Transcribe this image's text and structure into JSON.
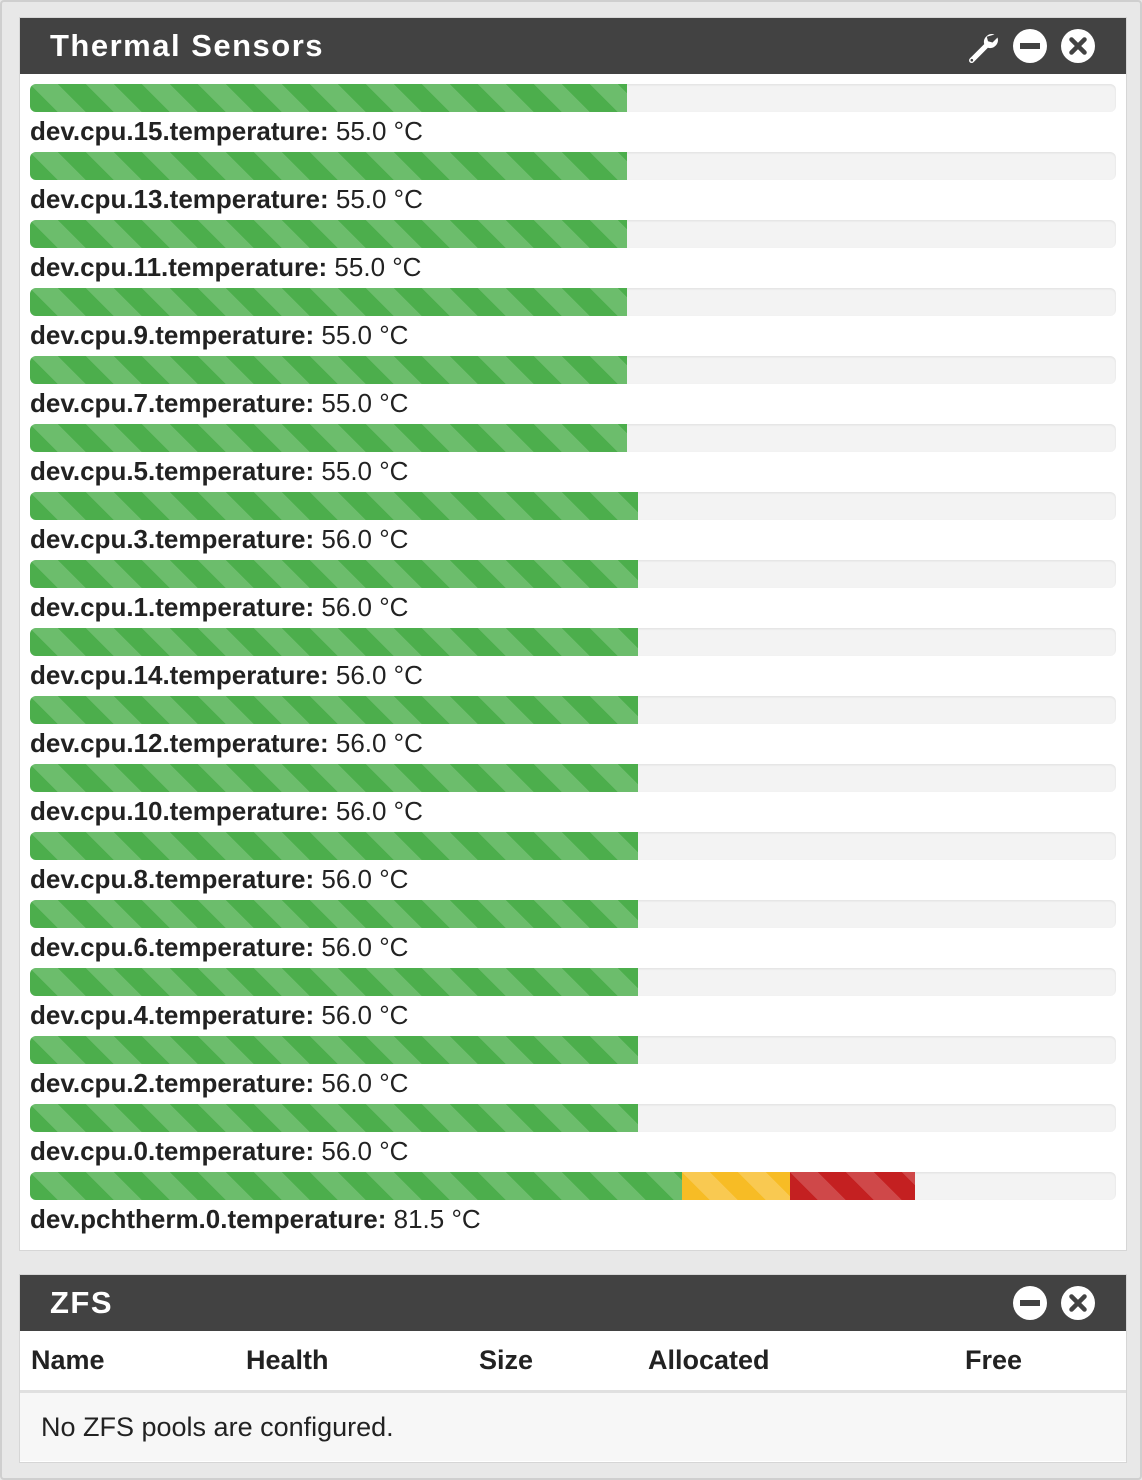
{
  "thermal": {
    "title": "Thermal Sensors",
    "icons": [
      "wrench-icon",
      "minus-circle-icon",
      "close-circle-icon"
    ],
    "colors": {
      "normal": "#4cae4c",
      "warning": "#f7bc25",
      "critical": "#c42021"
    },
    "sensors": [
      {
        "name": "dev.cpu.15.temperature:",
        "value": "55.0 °C",
        "level_pct": 55.0
      },
      {
        "name": "dev.cpu.13.temperature:",
        "value": "55.0 °C",
        "level_pct": 55.0
      },
      {
        "name": "dev.cpu.11.temperature:",
        "value": "55.0 °C",
        "level_pct": 55.0
      },
      {
        "name": "dev.cpu.9.temperature:",
        "value": "55.0 °C",
        "level_pct": 55.0
      },
      {
        "name": "dev.cpu.7.temperature:",
        "value": "55.0 °C",
        "level_pct": 55.0
      },
      {
        "name": "dev.cpu.5.temperature:",
        "value": "55.0 °C",
        "level_pct": 55.0
      },
      {
        "name": "dev.cpu.3.temperature:",
        "value": "56.0 °C",
        "level_pct": 56.0
      },
      {
        "name": "dev.cpu.1.temperature:",
        "value": "56.0 °C",
        "level_pct": 56.0
      },
      {
        "name": "dev.cpu.14.temperature:",
        "value": "56.0 °C",
        "level_pct": 56.0
      },
      {
        "name": "dev.cpu.12.temperature:",
        "value": "56.0 °C",
        "level_pct": 56.0
      },
      {
        "name": "dev.cpu.10.temperature:",
        "value": "56.0 °C",
        "level_pct": 56.0
      },
      {
        "name": "dev.cpu.8.temperature:",
        "value": "56.0 °C",
        "level_pct": 56.0
      },
      {
        "name": "dev.cpu.6.temperature:",
        "value": "56.0 °C",
        "level_pct": 56.0
      },
      {
        "name": "dev.cpu.4.temperature:",
        "value": "56.0 °C",
        "level_pct": 56.0
      },
      {
        "name": "dev.cpu.2.temperature:",
        "value": "56.0 °C",
        "level_pct": 56.0
      },
      {
        "name": "dev.cpu.0.temperature:",
        "value": "56.0 °C",
        "level_pct": 56.0
      },
      {
        "name": "dev.pchtherm.0.temperature:",
        "value": "81.5 °C",
        "level_pct": 81.5,
        "segments_pct": {
          "normal": 60.0,
          "warning": 10.0,
          "critical": 11.5
        }
      }
    ]
  },
  "zfs": {
    "title": "ZFS",
    "icons": [
      "minus-circle-icon",
      "close-circle-icon"
    ],
    "columns": [
      "Name",
      "Health",
      "Size",
      "Allocated",
      "Free"
    ],
    "empty_message": "No ZFS pools are configured."
  }
}
